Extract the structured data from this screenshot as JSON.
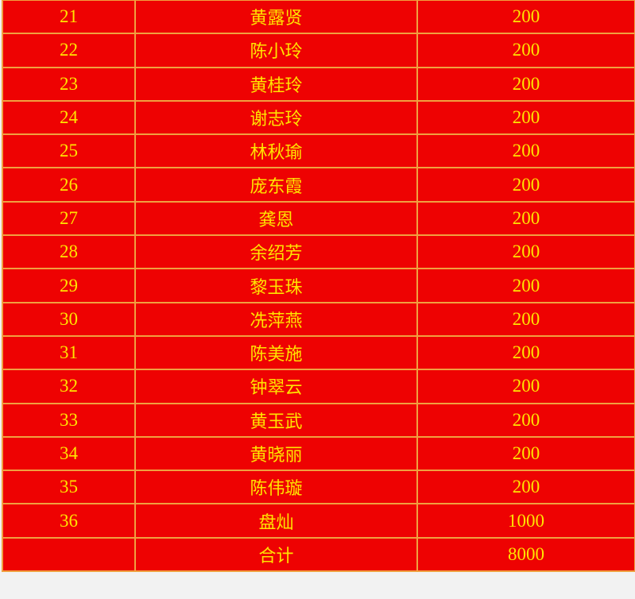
{
  "colors": {
    "background": "#ee0202",
    "text": "#ffe400",
    "border": "#f0a040"
  },
  "rows": [
    {
      "no": "21",
      "name": "黄露贤",
      "amount": "200"
    },
    {
      "no": "22",
      "name": "陈小玲",
      "amount": "200"
    },
    {
      "no": "23",
      "name": "黄桂玲",
      "amount": "200"
    },
    {
      "no": "24",
      "name": "谢志玲",
      "amount": "200"
    },
    {
      "no": "25",
      "name": "林秋瑜",
      "amount": "200"
    },
    {
      "no": "26",
      "name": "庞东霞",
      "amount": "200"
    },
    {
      "no": "27",
      "name": "龚恩",
      "amount": "200"
    },
    {
      "no": "28",
      "name": "余绍芳",
      "amount": "200"
    },
    {
      "no": "29",
      "name": "黎玉珠",
      "amount": "200"
    },
    {
      "no": "30",
      "name": "冼萍燕",
      "amount": "200"
    },
    {
      "no": "31",
      "name": "陈美施",
      "amount": "200"
    },
    {
      "no": "32",
      "name": "钟翠云",
      "amount": "200"
    },
    {
      "no": "33",
      "name": "黄玉武",
      "amount": "200"
    },
    {
      "no": "34",
      "name": "黄晓丽",
      "amount": "200"
    },
    {
      "no": "35",
      "name": "陈伟璇",
      "amount": "200"
    },
    {
      "no": "36",
      "name": "盘灿",
      "amount": "1000"
    }
  ],
  "total": {
    "no": "",
    "label": "合计",
    "amount": "8000"
  }
}
